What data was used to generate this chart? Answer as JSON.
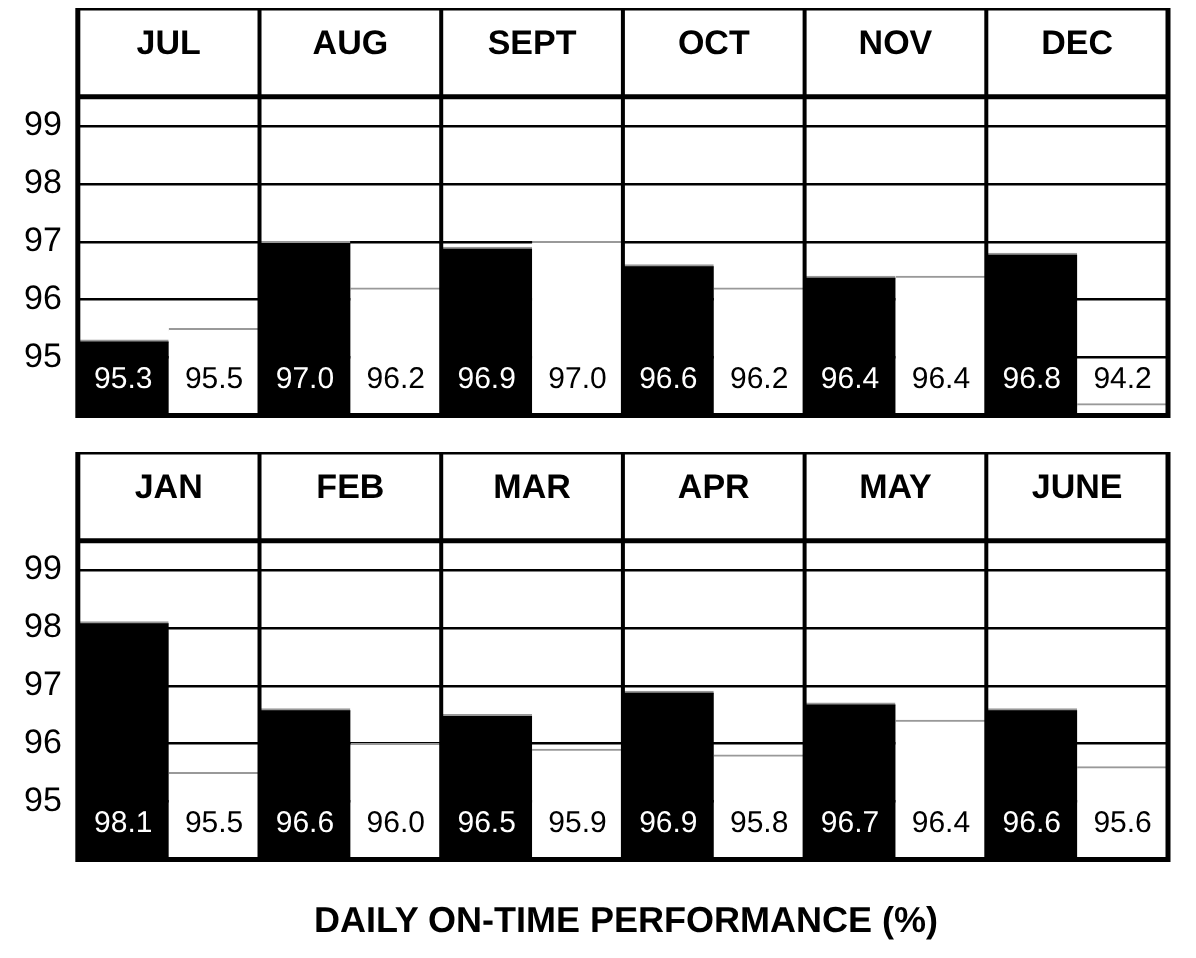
{
  "chart_data": [
    {
      "type": "bar",
      "categories": [
        "JUL",
        "AUG",
        "SEPT",
        "OCT",
        "NOV",
        "DEC"
      ],
      "ylim": [
        94,
        99.5
      ],
      "yticks": [
        95,
        96,
        97,
        98,
        99
      ],
      "grid": true,
      "legend": false,
      "series": [
        {
          "color": "#000000",
          "values": [
            95.3,
            97.0,
            96.9,
            96.6,
            96.4,
            96.8
          ],
          "value_labels": [
            "95.3",
            "97.0",
            "96.9",
            "96.6",
            "96.4",
            "96.8"
          ]
        },
        {
          "color": "#ffffff",
          "values": [
            95.5,
            96.2,
            97.0,
            96.2,
            96.4,
            94.2
          ],
          "value_labels": [
            "95.5",
            "96.2",
            "97.0",
            "96.2",
            "96.4",
            "94.2"
          ]
        }
      ]
    },
    {
      "type": "bar",
      "categories": [
        "JAN",
        "FEB",
        "MAR",
        "APR",
        "MAY",
        "JUNE"
      ],
      "ylim": [
        94,
        99.5
      ],
      "yticks": [
        95,
        96,
        97,
        98,
        99
      ],
      "grid": true,
      "legend": false,
      "xlabel": "DAILY ON-TIME PERFORMANCE (%)",
      "series": [
        {
          "color": "#000000",
          "values": [
            98.1,
            96.6,
            96.5,
            96.9,
            96.7,
            96.6
          ],
          "value_labels": [
            "98.1",
            "96.6",
            "96.5",
            "96.9",
            "96.7",
            "96.6"
          ]
        },
        {
          "color": "#ffffff",
          "values": [
            95.5,
            96.0,
            95.9,
            95.8,
            96.4,
            95.6
          ],
          "value_labels": [
            "95.5",
            "96.0",
            "95.9",
            "95.8",
            "96.4",
            "95.6"
          ]
        }
      ]
    }
  ]
}
